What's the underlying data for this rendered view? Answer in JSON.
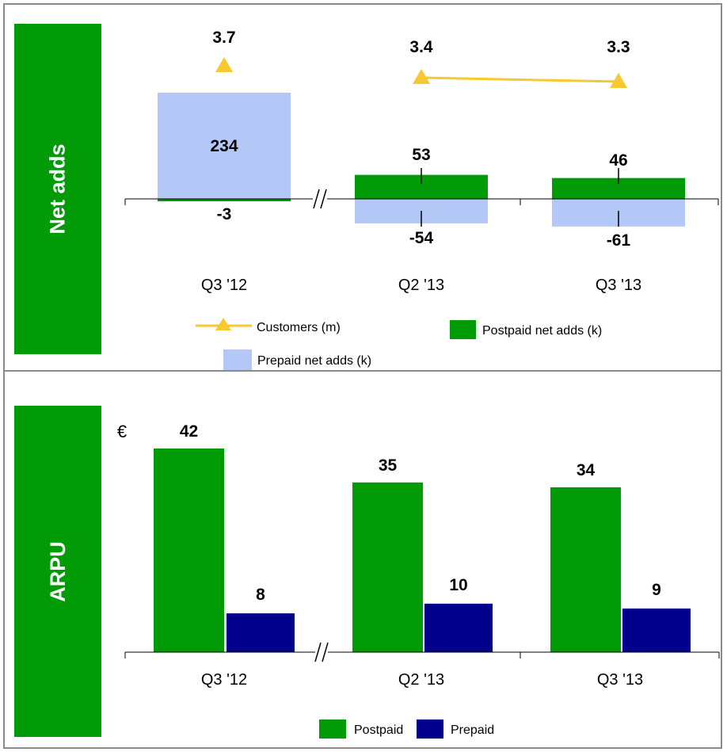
{
  "colors": {
    "green": "#009b06",
    "light_blue": "#b3c8f7",
    "navy": "#00008b",
    "yellow": "#f7c830",
    "label_bg": "#009b06"
  },
  "top_panel": {
    "side_label": "Net adds"
  },
  "bottom_panel": {
    "side_label": "ARPU",
    "unit_label": "€"
  },
  "chart_data": [
    {
      "type": "bar",
      "categories": [
        "Q3 '12",
        "Q2 '13",
        "Q3 '13"
      ],
      "series": [
        {
          "name": "Postpaid net adds (k)",
          "values": [
            -3,
            53,
            46
          ],
          "labels": [
            "-3",
            "53",
            "46"
          ]
        },
        {
          "name": "Prepaid net adds (k)",
          "values": [
            234,
            -54,
            -61
          ],
          "labels": [
            "234",
            "-54",
            "-61"
          ]
        },
        {
          "name": "Customers (m)",
          "type": "line",
          "values": [
            3.7,
            3.4,
            3.3
          ],
          "labels": [
            "3.7",
            "3.4",
            "3.3"
          ]
        }
      ],
      "legend": [
        "Customers (m)",
        "Postpaid net adds (k)",
        "Prepaid net adds (k)"
      ],
      "axis_break": "between Q3 '12 and Q2 '13",
      "stacked": true,
      "legend_position": "bottom"
    },
    {
      "type": "bar",
      "categories": [
        "Q3 '12",
        "Q2 '13",
        "Q3 '13"
      ],
      "ylabel": "€",
      "series": [
        {
          "name": "Postpaid",
          "values": [
            42,
            35,
            34
          ]
        },
        {
          "name": "Prepaid",
          "values": [
            8,
            10,
            9
          ]
        }
      ],
      "legend": [
        "Postpaid",
        "Prepaid"
      ],
      "axis_break": "between Q3 '12 and Q2 '13",
      "legend_position": "bottom"
    }
  ]
}
